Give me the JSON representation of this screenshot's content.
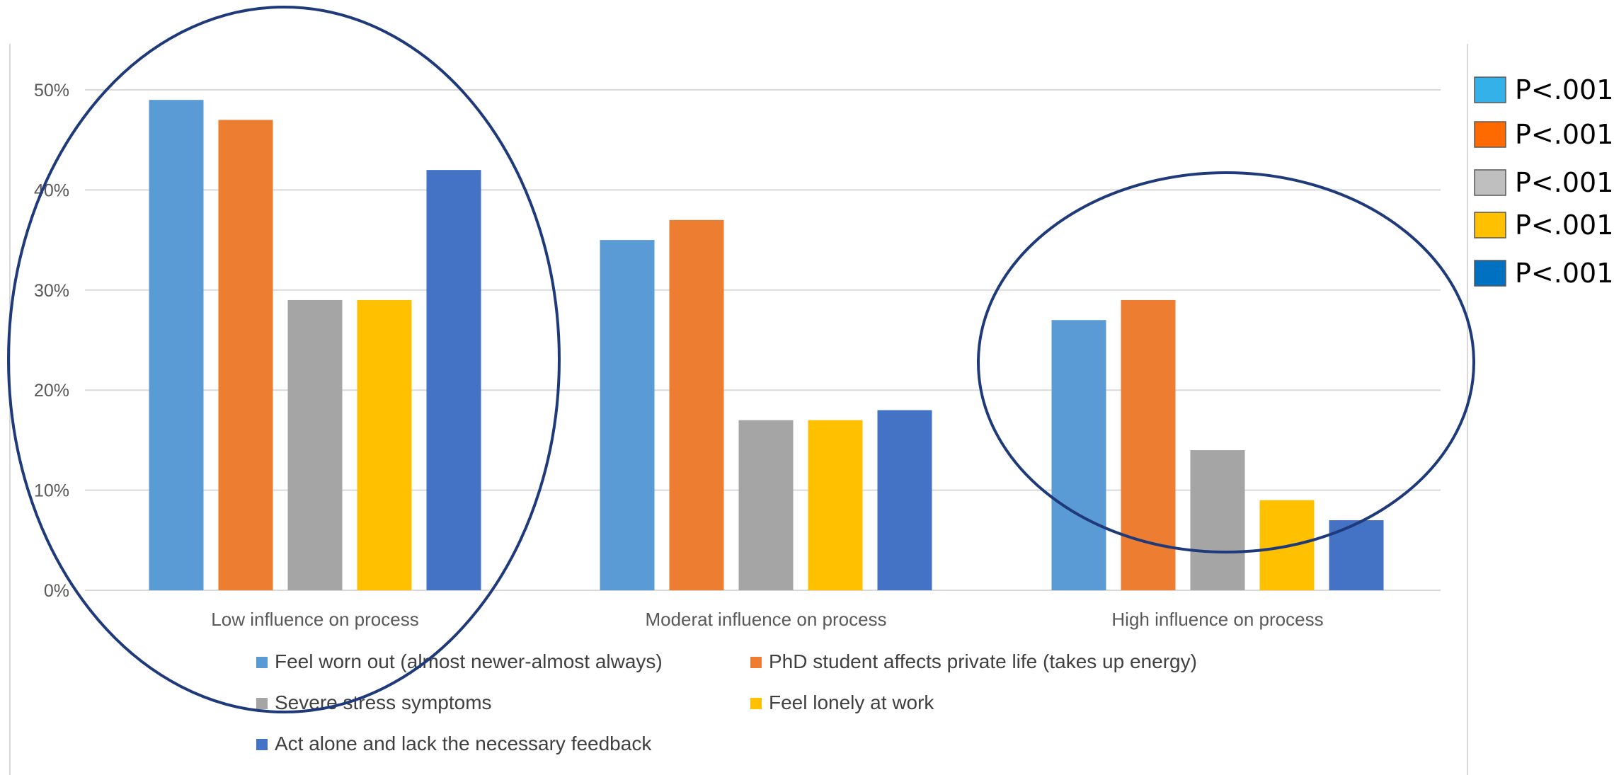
{
  "chart_data": {
    "type": "bar",
    "title": "",
    "xlabel": "",
    "ylabel": "",
    "ylim": [
      0,
      50
    ],
    "y_ticks": [
      "0%",
      "10%",
      "20%",
      "30%",
      "40%",
      "50%"
    ],
    "grid": true,
    "legend_position": "bottom",
    "categories": [
      "Low influence on process",
      "Moderat influence on process",
      "High influence on process"
    ],
    "series": [
      {
        "name": "Feel worn out (almost newer-almost always)",
        "color": "#5B9BD5",
        "values": [
          49,
          35,
          27
        ]
      },
      {
        "name": "PhD student affects private life (takes up energy)",
        "color": "#ED7D31",
        "values": [
          47,
          37,
          29
        ]
      },
      {
        "name": "Severe stress symptoms",
        "color": "#A5A5A5",
        "values": [
          29,
          17,
          14
        ]
      },
      {
        "name": "Feel lonely at work",
        "color": "#FFC000",
        "values": [
          29,
          17,
          9
        ]
      },
      {
        "name": "Act alone and lack the necessary feedback",
        "color": "#4472C4",
        "values": [
          42,
          18,
          7
        ]
      }
    ],
    "annotations": {
      "highlighted_groups": [
        "Low influence on process",
        "High influence on process"
      ],
      "ellipse_color": "#1F3A7A",
      "significance_legend": [
        {
          "label": "P<.001",
          "color": "#35B1EA"
        },
        {
          "label": "P<.001",
          "color": "#FF6A00"
        },
        {
          "label": "P<.001",
          "color": "#BFBFBF"
        },
        {
          "label": "P<.001",
          "color": "#FFC000"
        },
        {
          "label": "P<.001",
          "color": "#0070C0"
        }
      ]
    }
  }
}
